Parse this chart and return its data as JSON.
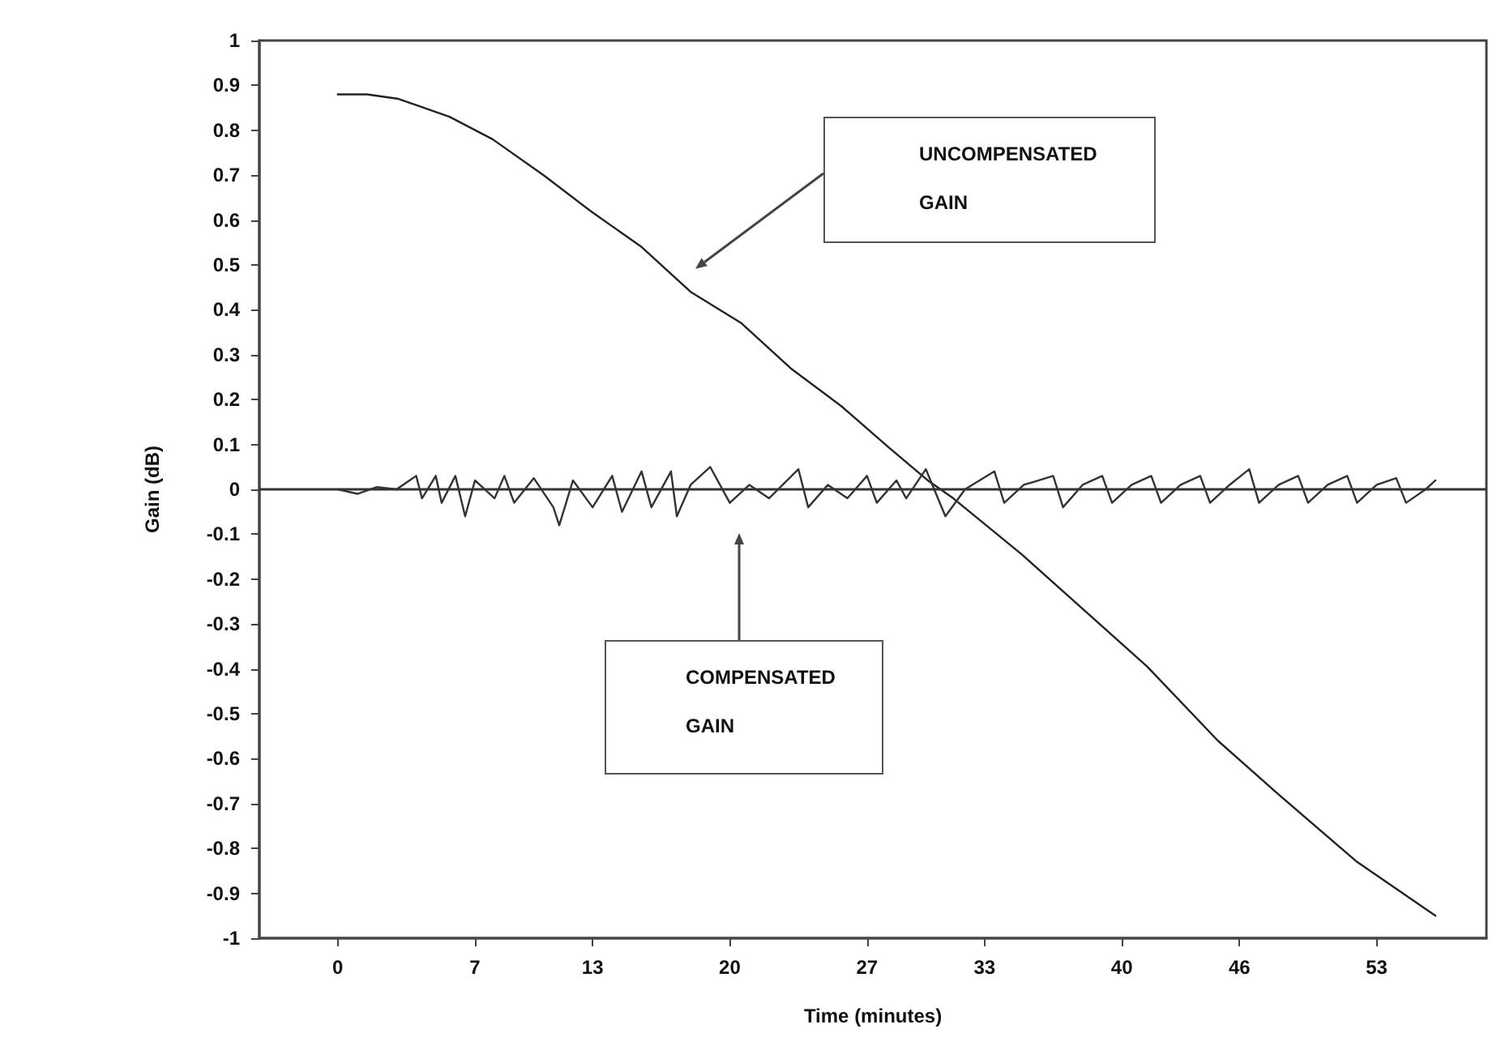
{
  "chart_data": {
    "type": "line",
    "xlabel": "Time (minutes)",
    "ylabel": "Gain (dB)",
    "xlim": [
      -4,
      58.6
    ],
    "xticks": [
      0,
      7,
      13,
      20,
      27,
      33,
      40,
      46,
      53
    ],
    "ylim": [
      -1,
      1
    ],
    "yticks": [
      -1,
      -0.9,
      -0.8,
      -0.7,
      -0.6,
      -0.5,
      -0.4,
      -0.3,
      -0.2,
      -0.1,
      0,
      0.1,
      0.2,
      0.3,
      0.4,
      0.5,
      0.6,
      0.7,
      0.8,
      0.9,
      1
    ],
    "grid": false,
    "marker": "none",
    "line_style": "solid",
    "ref_lines": [
      {
        "axis": "y",
        "value": 0,
        "label": null,
        "color": "#333333"
      }
    ],
    "series": [
      {
        "color": "#222222",
        "x": [
          0,
          1.5,
          3.1,
          5.7,
          7.9,
          10.5,
          12.9,
          15.5,
          18.0,
          20.6,
          23.1,
          25.7,
          28.2,
          30.1,
          31.4,
          34.9,
          38.1,
          41.3,
          44.9,
          48,
          52,
          56
        ],
        "values": [
          0.88,
          0.88,
          0.87,
          0.83,
          0.78,
          0.7,
          0.62,
          0.54,
          0.44,
          0.37,
          0.27,
          0.185,
          0.09,
          0.02,
          -0.02,
          -0.145,
          -0.27,
          -0.395,
          -0.56,
          -0.68,
          -0.83,
          -0.95
        ]
      },
      {
        "color": "#333333",
        "x": [
          0,
          1,
          2,
          3,
          4,
          4.3,
          5,
          5.3,
          6,
          6.5,
          7,
          8,
          8.5,
          9,
          10,
          11,
          11.3,
          12,
          13,
          14,
          14.5,
          15.5,
          16,
          17,
          17.3,
          18,
          19,
          20,
          21,
          22,
          23.5,
          24,
          25,
          26,
          27,
          27.5,
          28.5,
          29,
          30,
          31,
          32,
          33.5,
          34,
          35,
          36.5,
          37,
          38,
          39,
          39.5,
          40.5,
          41.5,
          42,
          43,
          44,
          44.5,
          45.5,
          46.5,
          47,
          48,
          49,
          49.5,
          50.5,
          51.5,
          52,
          53,
          54,
          54.5,
          55.5,
          56
        ],
        "values": [
          0,
          -0.01,
          0.005,
          0,
          0.03,
          -0.02,
          0.03,
          -0.03,
          0.03,
          -0.06,
          0.02,
          -0.02,
          0.03,
          -0.03,
          0.025,
          -0.04,
          -0.08,
          0.02,
          -0.04,
          0.03,
          -0.05,
          0.04,
          -0.04,
          0.04,
          -0.06,
          0.01,
          0.05,
          -0.03,
          0.01,
          -0.02,
          0.045,
          -0.04,
          0.01,
          -0.02,
          0.03,
          -0.03,
          0.02,
          -0.02,
          0.045,
          -0.06,
          0,
          0.04,
          -0.03,
          0.01,
          0.03,
          -0.04,
          0.01,
          0.03,
          -0.03,
          0.01,
          0.03,
          -0.03,
          0.01,
          0.03,
          -0.03,
          0.01,
          0.045,
          -0.03,
          0.01,
          0.03,
          -0.03,
          0.01,
          0.03,
          -0.03,
          0.01,
          0.025,
          -0.03,
          0,
          0.02
        ]
      }
    ],
    "annotations": [
      "UNCOMPENSATED GAIN",
      "COMPENSATED GAIN"
    ]
  }
}
